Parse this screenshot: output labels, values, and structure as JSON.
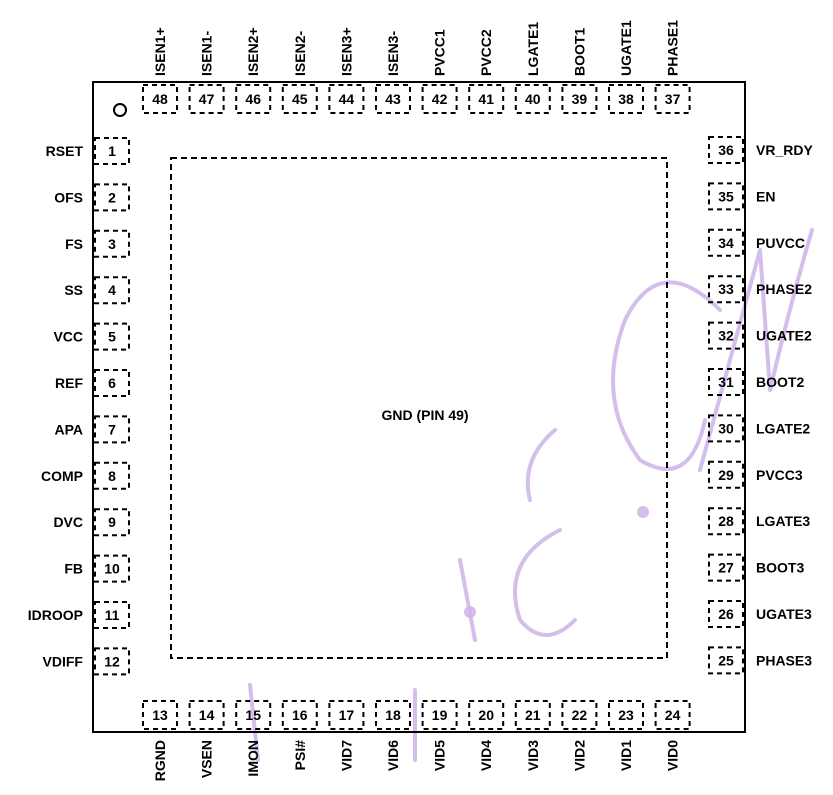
{
  "package": {
    "center_label": "GND (PIN 49)",
    "watermark_text": "ic.com",
    "watermark_color": "#cfb7ea"
  },
  "pins": {
    "left": [
      {
        "num": "1",
        "name": "RSET"
      },
      {
        "num": "2",
        "name": "OFS"
      },
      {
        "num": "3",
        "name": "FS"
      },
      {
        "num": "4",
        "name": "SS"
      },
      {
        "num": "5",
        "name": "VCC"
      },
      {
        "num": "6",
        "name": "REF"
      },
      {
        "num": "7",
        "name": "APA"
      },
      {
        "num": "8",
        "name": "COMP"
      },
      {
        "num": "9",
        "name": "DVC"
      },
      {
        "num": "10",
        "name": "FB"
      },
      {
        "num": "11",
        "name": "IDROOP"
      },
      {
        "num": "12",
        "name": "VDIFF"
      }
    ],
    "bottom": [
      {
        "num": "13",
        "name": "RGND"
      },
      {
        "num": "14",
        "name": "VSEN"
      },
      {
        "num": "15",
        "name": "IMON"
      },
      {
        "num": "16",
        "name": "PSI#"
      },
      {
        "num": "17",
        "name": "VID7"
      },
      {
        "num": "18",
        "name": "VID6"
      },
      {
        "num": "19",
        "name": "VID5"
      },
      {
        "num": "20",
        "name": "VID4"
      },
      {
        "num": "21",
        "name": "VID3"
      },
      {
        "num": "22",
        "name": "VID2"
      },
      {
        "num": "23",
        "name": "VID1"
      },
      {
        "num": "24",
        "name": "VID0"
      }
    ],
    "right": [
      {
        "num": "36",
        "name": "VR_RDY"
      },
      {
        "num": "35",
        "name": "EN"
      },
      {
        "num": "34",
        "name": "PUVCC"
      },
      {
        "num": "33",
        "name": "PHASE2"
      },
      {
        "num": "32",
        "name": "UGATE2"
      },
      {
        "num": "31",
        "name": "BOOT2"
      },
      {
        "num": "30",
        "name": "LGATE2"
      },
      {
        "num": "29",
        "name": "PVCC3"
      },
      {
        "num": "28",
        "name": "LGATE3"
      },
      {
        "num": "27",
        "name": "BOOT3"
      },
      {
        "num": "26",
        "name": "UGATE3"
      },
      {
        "num": "25",
        "name": "PHASE3"
      }
    ],
    "top": [
      {
        "num": "48",
        "name": "ISEN1+"
      },
      {
        "num": "47",
        "name": "ISEN1-"
      },
      {
        "num": "46",
        "name": "ISEN2+"
      },
      {
        "num": "45",
        "name": "ISEN2-"
      },
      {
        "num": "44",
        "name": "ISEN3+"
      },
      {
        "num": "43",
        "name": "ISEN3-"
      },
      {
        "num": "42",
        "name": "PVCC1"
      },
      {
        "num": "41",
        "name": "PVCC2"
      },
      {
        "num": "40",
        "name": "LGATE1"
      },
      {
        "num": "39",
        "name": "BOOT1"
      },
      {
        "num": "38",
        "name": "UGATE1"
      },
      {
        "num": "37",
        "name": "PHASE1"
      }
    ]
  }
}
